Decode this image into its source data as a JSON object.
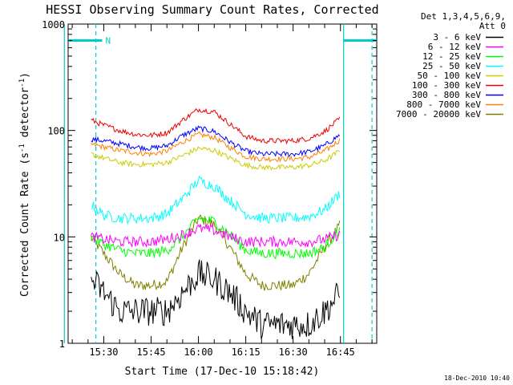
{
  "chart_data": {
    "type": "line",
    "title": "HESSI Observing Summary Count Rates, Corrected",
    "xlabel": "Start Time (17-Dec-10 15:18:42)",
    "ylabel": "Corrected Count Rate (s⁻¹ detector⁻¹)",
    "ylabel_parts": {
      "prefix": "Corrected Count Rate (s",
      "sup1": "-1",
      "middle": " detector",
      "sup2": "-1",
      "suffix": ")"
    },
    "yscale": "log",
    "ylim": [
      1,
      1000
    ],
    "xlim": [
      "15:18:42",
      "16:56:30"
    ],
    "xlim_minutes": [
      18.7,
      116.5
    ],
    "x_unit": "minutes after 15:00 on 17-Dec-10",
    "x_ticks": [
      {
        "label": "15:30",
        "value": 30
      },
      {
        "label": "15:45",
        "value": 45
      },
      {
        "label": "16:00",
        "value": 60
      },
      {
        "label": "16:15",
        "value": 75
      },
      {
        "label": "16:30",
        "value": 90
      },
      {
        "label": "16:45",
        "value": 105
      }
    ],
    "y_ticks": [
      {
        "label": "1",
        "value": 1
      },
      {
        "label": "10",
        "value": 10
      },
      {
        "label": "100",
        "value": 100
      },
      {
        "label": "1000",
        "value": 1000
      }
    ],
    "legend_header": [
      "Det 1,3,4,5,6,9,",
      "Att 0"
    ],
    "legend_position": "right",
    "timestamp": "18-Dec-2010 10:40",
    "night_marker": "N",
    "night_bars": [
      {
        "from": 18.7,
        "to": 29.5
      },
      {
        "from": 106.0,
        "to": 116.5
      }
    ],
    "vlines_solid": [
      17.5,
      106.0
    ],
    "vlines_dashed": [
      27.5,
      115.0
    ],
    "series": [
      {
        "name": "3 - 6 keV",
        "color": "#000000",
        "x": [
          26,
          30,
          35,
          40,
          45,
          50,
          55,
          60,
          65,
          70,
          75,
          80,
          85,
          90,
          95,
          100,
          105
        ],
        "y": [
          4,
          3,
          2,
          2,
          2,
          2,
          3,
          4.5,
          4,
          3,
          2,
          1.5,
          1.5,
          1.5,
          1.5,
          2,
          3
        ]
      },
      {
        "name": "6 - 12 keV",
        "color": "#ff00ff",
        "x": [
          26,
          30,
          35,
          40,
          45,
          50,
          55,
          60,
          65,
          70,
          75,
          80,
          85,
          90,
          95,
          100,
          105
        ],
        "y": [
          10,
          9.5,
          9,
          9,
          9,
          9.5,
          10.5,
          12,
          11.5,
          10,
          9,
          9,
          9,
          9,
          9,
          9.5,
          10.5
        ]
      },
      {
        "name": "12 - 25 keV",
        "color": "#00ff00",
        "x": [
          26,
          30,
          35,
          40,
          45,
          50,
          55,
          60,
          65,
          70,
          75,
          80,
          85,
          90,
          95,
          100,
          105
        ],
        "y": [
          10,
          8.5,
          7.5,
          7,
          7,
          7.5,
          10,
          15,
          14,
          10.5,
          7.5,
          7,
          7,
          7,
          7,
          8,
          12
        ]
      },
      {
        "name": "25 - 50 keV",
        "color": "#00ffff",
        "x": [
          26,
          30,
          35,
          40,
          45,
          50,
          55,
          60,
          65,
          70,
          75,
          80,
          85,
          90,
          95,
          100,
          105
        ],
        "y": [
          20,
          16,
          15,
          15,
          15,
          16.5,
          23,
          34,
          30,
          22,
          16.5,
          15,
          15,
          15,
          15.5,
          18,
          26
        ]
      },
      {
        "name": "50 - 100 keV",
        "color": "#cccc00",
        "x": [
          26,
          30,
          35,
          40,
          45,
          50,
          55,
          60,
          65,
          70,
          75,
          80,
          85,
          90,
          95,
          100,
          105
        ],
        "y": [
          60,
          55,
          50,
          48,
          48,
          50,
          58,
          68,
          65,
          55,
          47,
          45,
          45,
          45,
          47,
          52,
          65
        ]
      },
      {
        "name": "100 - 300 keV",
        "color": "#ee0000",
        "x": [
          26,
          30,
          35,
          40,
          45,
          50,
          55,
          60,
          65,
          70,
          75,
          80,
          85,
          90,
          95,
          100,
          105
        ],
        "y": [
          125,
          112,
          100,
          92,
          90,
          95,
          125,
          158,
          150,
          115,
          88,
          80,
          80,
          80,
          84,
          98,
          130
        ]
      },
      {
        "name": "300 - 800 keV",
        "color": "#0000ff",
        "x": [
          26,
          30,
          35,
          40,
          45,
          50,
          55,
          60,
          65,
          70,
          75,
          80,
          85,
          90,
          95,
          100,
          105
        ],
        "y": [
          83,
          80,
          75,
          70,
          68,
          72,
          90,
          105,
          98,
          78,
          64,
          60,
          60,
          60,
          63,
          72,
          92
        ]
      },
      {
        "name": "800 - 7000 keV",
        "color": "#ff8000",
        "x": [
          26,
          30,
          35,
          40,
          45,
          50,
          55,
          60,
          65,
          70,
          75,
          80,
          85,
          90,
          95,
          100,
          105
        ],
        "y": [
          74,
          70,
          65,
          62,
          60,
          64,
          78,
          92,
          86,
          69,
          57,
          54,
          54,
          54,
          56,
          64,
          82
        ]
      },
      {
        "name": "7000 - 20000 keV",
        "color": "#808000",
        "x": [
          26,
          30,
          35,
          40,
          45,
          50,
          55,
          60,
          65,
          70,
          75,
          80,
          85,
          90,
          95,
          100,
          105
        ],
        "y": [
          10,
          7,
          4.5,
          3.5,
          3.5,
          3.8,
          8,
          15,
          13,
          8,
          4.5,
          3.5,
          3.5,
          3.5,
          4.5,
          8,
          13
        ]
      }
    ]
  }
}
